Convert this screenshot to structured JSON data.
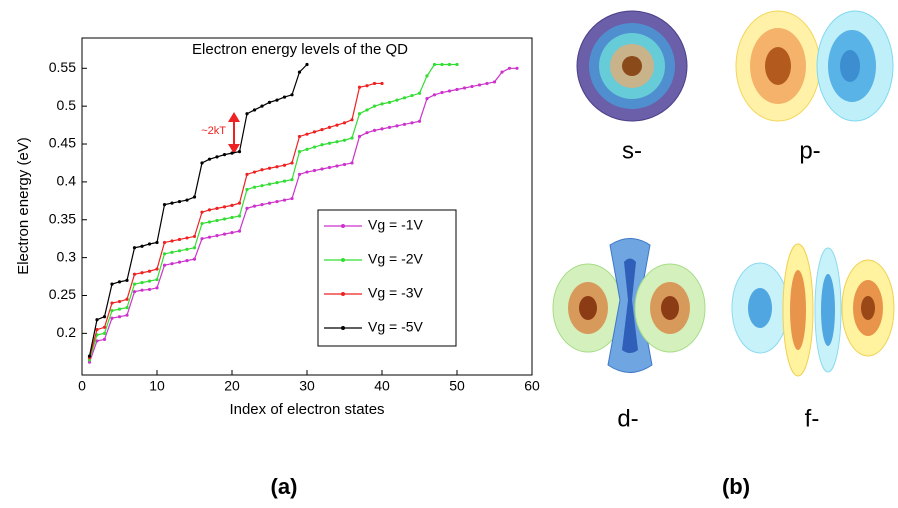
{
  "chart_data": {
    "type": "line",
    "title": "Electron energy levels of the QD",
    "xlabel": "Index of electron states",
    "ylabel": "Electron energy (eV)",
    "xlim": [
      0,
      60
    ],
    "xticks": [
      0,
      10,
      20,
      30,
      40,
      50,
      60
    ],
    "ylim": [
      0.145,
      0.59
    ],
    "yticks": [
      0.2,
      0.25,
      0.3,
      0.35,
      0.4,
      0.45,
      0.5,
      0.55
    ],
    "legend": "lower right",
    "annotation": "~2kT",
    "series": [
      {
        "name": "Vg = -1V",
        "color": "#cc33cc",
        "x": [
          1,
          2,
          3,
          4,
          5,
          6,
          7,
          8,
          9,
          10,
          11,
          12,
          13,
          14,
          15,
          16,
          17,
          18,
          19,
          20,
          21,
          22,
          23,
          24,
          25,
          26,
          27,
          28,
          29,
          30,
          31,
          32,
          33,
          34,
          35,
          36,
          37,
          38,
          39,
          40,
          41,
          42,
          43,
          44,
          45,
          46,
          47,
          48,
          49,
          50,
          51,
          52,
          53,
          54,
          55,
          56,
          57,
          58
        ],
        "values": [
          0.162,
          0.19,
          0.192,
          0.22,
          0.222,
          0.224,
          0.255,
          0.257,
          0.258,
          0.26,
          0.29,
          0.292,
          0.294,
          0.296,
          0.298,
          0.325,
          0.327,
          0.329,
          0.331,
          0.333,
          0.335,
          0.365,
          0.368,
          0.37,
          0.372,
          0.374,
          0.376,
          0.378,
          0.41,
          0.413,
          0.415,
          0.417,
          0.419,
          0.421,
          0.423,
          0.425,
          0.46,
          0.465,
          0.468,
          0.47,
          0.472,
          0.474,
          0.476,
          0.478,
          0.48,
          0.51,
          0.515,
          0.518,
          0.52,
          0.522,
          0.524,
          0.526,
          0.528,
          0.53,
          0.532,
          0.545,
          0.55,
          0.55
        ]
      },
      {
        "name": "Vg = -2V",
        "color": "#33dd33",
        "x": [
          1,
          2,
          3,
          4,
          5,
          6,
          7,
          8,
          9,
          10,
          11,
          12,
          13,
          14,
          15,
          16,
          17,
          18,
          19,
          20,
          21,
          22,
          23,
          24,
          25,
          26,
          27,
          28,
          29,
          30,
          31,
          32,
          33,
          34,
          35,
          36,
          37,
          38,
          39,
          40,
          41,
          42,
          43,
          44,
          45,
          46,
          47,
          48,
          49,
          50
        ],
        "values": [
          0.165,
          0.198,
          0.2,
          0.23,
          0.232,
          0.234,
          0.265,
          0.267,
          0.269,
          0.271,
          0.305,
          0.307,
          0.309,
          0.311,
          0.313,
          0.345,
          0.347,
          0.349,
          0.351,
          0.353,
          0.355,
          0.39,
          0.393,
          0.395,
          0.397,
          0.399,
          0.401,
          0.403,
          0.44,
          0.443,
          0.446,
          0.449,
          0.451,
          0.453,
          0.455,
          0.458,
          0.49,
          0.495,
          0.5,
          0.503,
          0.505,
          0.508,
          0.511,
          0.514,
          0.517,
          0.54,
          0.555,
          0.555,
          0.555,
          0.555
        ]
      },
      {
        "name": "Vg = -3V",
        "color": "#ee2222",
        "x": [
          1,
          2,
          3,
          4,
          5,
          6,
          7,
          8,
          9,
          10,
          11,
          12,
          13,
          14,
          15,
          16,
          17,
          18,
          19,
          20,
          21,
          22,
          23,
          24,
          25,
          26,
          27,
          28,
          29,
          30,
          31,
          32,
          33,
          34,
          35,
          36,
          37,
          38,
          39,
          40
        ],
        "values": [
          0.168,
          0.205,
          0.208,
          0.24,
          0.242,
          0.245,
          0.278,
          0.28,
          0.282,
          0.285,
          0.32,
          0.322,
          0.324,
          0.326,
          0.328,
          0.36,
          0.363,
          0.365,
          0.367,
          0.369,
          0.372,
          0.41,
          0.413,
          0.416,
          0.418,
          0.42,
          0.422,
          0.425,
          0.46,
          0.463,
          0.466,
          0.469,
          0.472,
          0.475,
          0.478,
          0.482,
          0.525,
          0.527,
          0.53,
          0.53
        ]
      },
      {
        "name": "Vg = -5V",
        "color": "#000000",
        "x": [
          1,
          2,
          3,
          4,
          5,
          6,
          7,
          8,
          9,
          10,
          11,
          12,
          13,
          14,
          15,
          16,
          17,
          18,
          19,
          20,
          21,
          22,
          23,
          24,
          25,
          26,
          27,
          28,
          29,
          30
        ],
        "values": [
          0.17,
          0.218,
          0.222,
          0.265,
          0.268,
          0.27,
          0.313,
          0.315,
          0.318,
          0.32,
          0.37,
          0.372,
          0.374,
          0.376,
          0.38,
          0.425,
          0.43,
          0.433,
          0.436,
          0.438,
          0.44,
          0.49,
          0.495,
          0.5,
          0.505,
          0.508,
          0.512,
          0.515,
          0.545,
          0.555
        ]
      }
    ]
  },
  "panel_labels": [
    "(a)",
    "(b)"
  ],
  "orbitals": [
    "s-",
    "p-",
    "d-",
    "f-"
  ]
}
